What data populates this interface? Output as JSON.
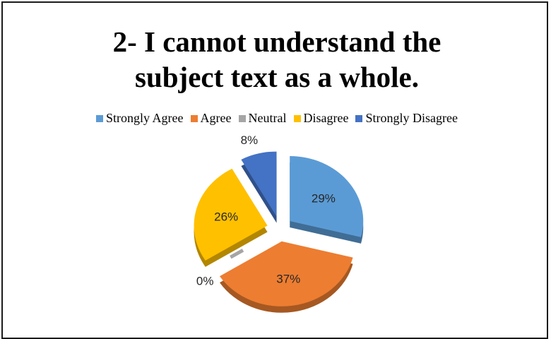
{
  "chart_data": {
    "type": "pie",
    "title_line1": "2- I cannot understand the",
    "title_line2": "subject text as a whole.",
    "legend_position": "top",
    "categories": [
      "Strongly Agree",
      "Agree",
      "Neutral",
      "Disagree",
      "Strongly Disagree"
    ],
    "values": [
      29,
      37,
      0,
      26,
      8
    ],
    "labels": [
      "29%",
      "37%",
      "0%",
      "26%",
      "8%"
    ],
    "colors": [
      "#5B9BD5",
      "#ED7D31",
      "#A5A5A5",
      "#FFC000",
      "#4472C4"
    ],
    "exploded": true
  }
}
